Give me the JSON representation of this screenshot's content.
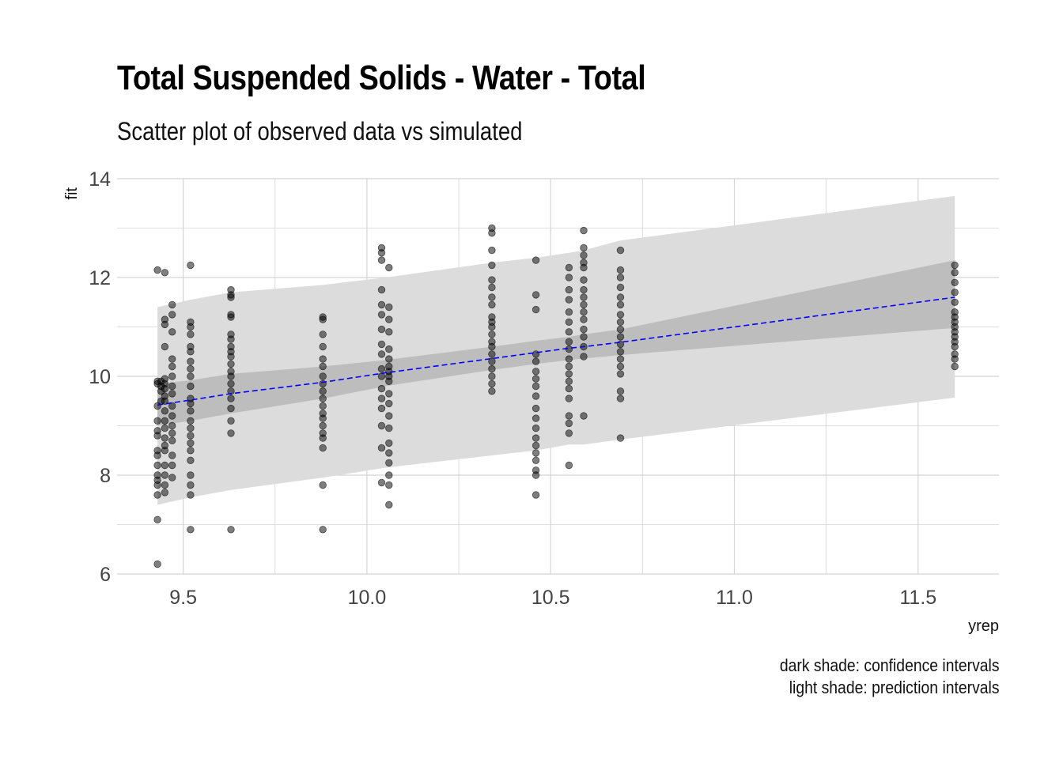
{
  "chart_data": {
    "type": "scatter",
    "title": "Total Suspended Solids - Water - Total",
    "subtitle": "Scatter plot of observed data vs simulated",
    "xlabel": "yrep",
    "ylabel": "fit",
    "xlim": [
      9.32,
      11.72
    ],
    "ylim": [
      6,
      14
    ],
    "x_ticks": [
      9.5,
      10.0,
      10.5,
      11.0,
      11.5
    ],
    "x_tick_labels": [
      "9.5",
      "10.0",
      "10.5",
      "11.0",
      "11.5"
    ],
    "y_ticks": [
      6,
      8,
      10,
      12,
      14
    ],
    "y_tick_labels": [
      "6",
      "8",
      "10",
      "12",
      "14"
    ],
    "grid": true,
    "caption": [
      "dark shade: confidence intervals",
      "light shade: prediction intervals"
    ],
    "colors": {
      "line": "#0000ff",
      "point": "#000000",
      "ci": "#bdbdbd",
      "pi": "#dcdcdc",
      "grid": "#d4d4d4"
    },
    "fit_line": {
      "x": [
        9.43,
        9.52,
        9.63,
        9.88,
        10.05,
        10.34,
        10.46,
        10.55,
        10.59,
        10.69,
        11.6
      ],
      "y": [
        9.42,
        9.52,
        9.65,
        9.88,
        10.07,
        10.36,
        10.48,
        10.57,
        10.6,
        10.69,
        11.6
      ]
    },
    "confidence_band": {
      "x": [
        9.43,
        9.52,
        9.63,
        9.88,
        10.05,
        10.34,
        10.46,
        10.55,
        10.59,
        10.69,
        11.6
      ],
      "lower": [
        9.0,
        9.1,
        9.25,
        9.55,
        9.8,
        10.13,
        10.25,
        10.33,
        10.36,
        10.43,
        10.98
      ],
      "upper": [
        9.85,
        9.92,
        10.05,
        10.2,
        10.33,
        10.6,
        10.72,
        10.8,
        10.85,
        10.95,
        12.35
      ]
    },
    "prediction_band": {
      "x": [
        9.43,
        9.52,
        9.63,
        9.88,
        10.05,
        10.34,
        10.46,
        10.55,
        10.59,
        10.69,
        11.6
      ],
      "lower": [
        7.4,
        7.55,
        7.7,
        7.95,
        8.15,
        8.4,
        8.5,
        8.62,
        8.62,
        8.72,
        9.57
      ],
      "upper": [
        11.4,
        11.55,
        11.7,
        11.85,
        12.0,
        12.3,
        12.4,
        12.5,
        12.55,
        12.75,
        13.65
      ]
    },
    "points": [
      {
        "x": 9.43,
        "y": [
          12.15,
          9.9,
          9.85,
          9.4,
          9.1,
          8.9,
          8.8,
          8.5,
          8.4,
          8.2,
          8.0,
          7.9,
          7.8,
          7.6,
          7.1,
          6.2
        ]
      },
      {
        "x": 9.44,
        "y": [
          9.9,
          9.8,
          9.7,
          9.5
        ]
      },
      {
        "x": 9.45,
        "y": [
          12.1,
          11.15,
          11.05,
          10.6,
          9.95,
          9.85,
          9.75,
          9.6,
          9.5,
          9.3,
          9.1,
          8.95,
          8.75,
          8.6,
          8.5,
          8.2,
          8.0,
          7.8,
          7.65
        ]
      },
      {
        "x": 9.47,
        "y": [
          11.45,
          11.25,
          10.9,
          10.35,
          10.2,
          10.0,
          9.8,
          9.65,
          9.4,
          9.2,
          9.0,
          8.85,
          8.7,
          8.4,
          8.2,
          7.95
        ]
      },
      {
        "x": 9.52,
        "y": [
          12.25,
          11.1,
          11.0,
          10.85,
          10.6,
          10.5,
          10.3,
          10.15,
          10.0,
          9.8,
          9.55,
          9.45,
          9.3,
          9.1,
          8.95,
          8.8,
          8.65,
          8.5,
          8.3,
          8.0,
          7.8,
          7.6,
          6.9
        ]
      },
      {
        "x": 9.63,
        "y": [
          11.75,
          11.65,
          11.6,
          11.25,
          11.2,
          10.85,
          10.75,
          10.6,
          10.5,
          10.4,
          10.25,
          10.1,
          10.0,
          9.85,
          9.7,
          9.55,
          9.35,
          9.1,
          8.85,
          6.9
        ]
      },
      {
        "x": 9.88,
        "y": [
          11.2,
          11.15,
          10.85,
          10.6,
          10.35,
          10.2,
          10.0,
          9.85,
          9.7,
          9.55,
          9.4,
          9.25,
          9.15,
          9.0,
          8.85,
          8.75,
          8.55,
          7.8,
          6.9
        ]
      },
      {
        "x": 10.04,
        "y": [
          12.6,
          12.5,
          12.35,
          11.75,
          11.45,
          11.25,
          10.95,
          10.65,
          10.45,
          10.15,
          10.0,
          9.75,
          9.55,
          9.35,
          9.0,
          8.55,
          7.85
        ]
      },
      {
        "x": 10.06,
        "y": [
          12.2,
          11.4,
          11.15,
          10.9,
          10.55,
          10.35,
          10.2,
          10.1,
          10.0,
          9.9,
          9.65,
          9.45,
          9.2,
          8.95,
          8.65,
          8.45,
          8.25,
          8.0,
          7.8,
          7.4
        ]
      },
      {
        "x": 10.34,
        "y": [
          13.0,
          12.9,
          12.55,
          12.25,
          11.95,
          11.8,
          11.6,
          11.45,
          11.2,
          11.1,
          11.0,
          10.85,
          10.7,
          10.6,
          10.45,
          10.3,
          10.15,
          10.0,
          9.85,
          9.7
        ]
      },
      {
        "x": 10.46,
        "y": [
          12.35,
          11.65,
          11.35,
          10.45,
          10.3,
          10.1,
          9.95,
          9.8,
          9.6,
          9.35,
          9.15,
          8.95,
          8.75,
          8.6,
          8.45,
          8.3,
          8.1,
          8.0,
          7.6
        ]
      },
      {
        "x": 10.55,
        "y": [
          12.2,
          12.0,
          11.75,
          11.55,
          11.3,
          11.1,
          10.9,
          10.7,
          10.55,
          10.35,
          10.2,
          10.05,
          9.9,
          9.75,
          9.55,
          9.2,
          9.05,
          8.85,
          8.2
        ]
      },
      {
        "x": 10.59,
        "y": [
          12.95,
          12.6,
          12.45,
          12.3,
          12.2,
          11.95,
          11.75,
          11.6,
          11.45,
          11.3,
          11.15,
          10.95,
          10.8,
          10.6,
          10.4,
          9.2
        ]
      },
      {
        "x": 10.69,
        "y": [
          12.55,
          12.15,
          12.0,
          11.8,
          11.6,
          11.45,
          11.25,
          11.1,
          10.95,
          10.8,
          10.65,
          10.5,
          10.35,
          10.2,
          10.05,
          9.7,
          9.55,
          8.75
        ]
      },
      {
        "x": 11.6,
        "y": [
          12.25,
          12.1,
          11.9,
          11.7,
          11.5,
          11.3,
          11.2,
          11.1,
          11.0,
          10.9,
          10.8,
          10.7,
          10.6,
          10.45,
          10.35,
          10.2
        ]
      }
    ]
  }
}
